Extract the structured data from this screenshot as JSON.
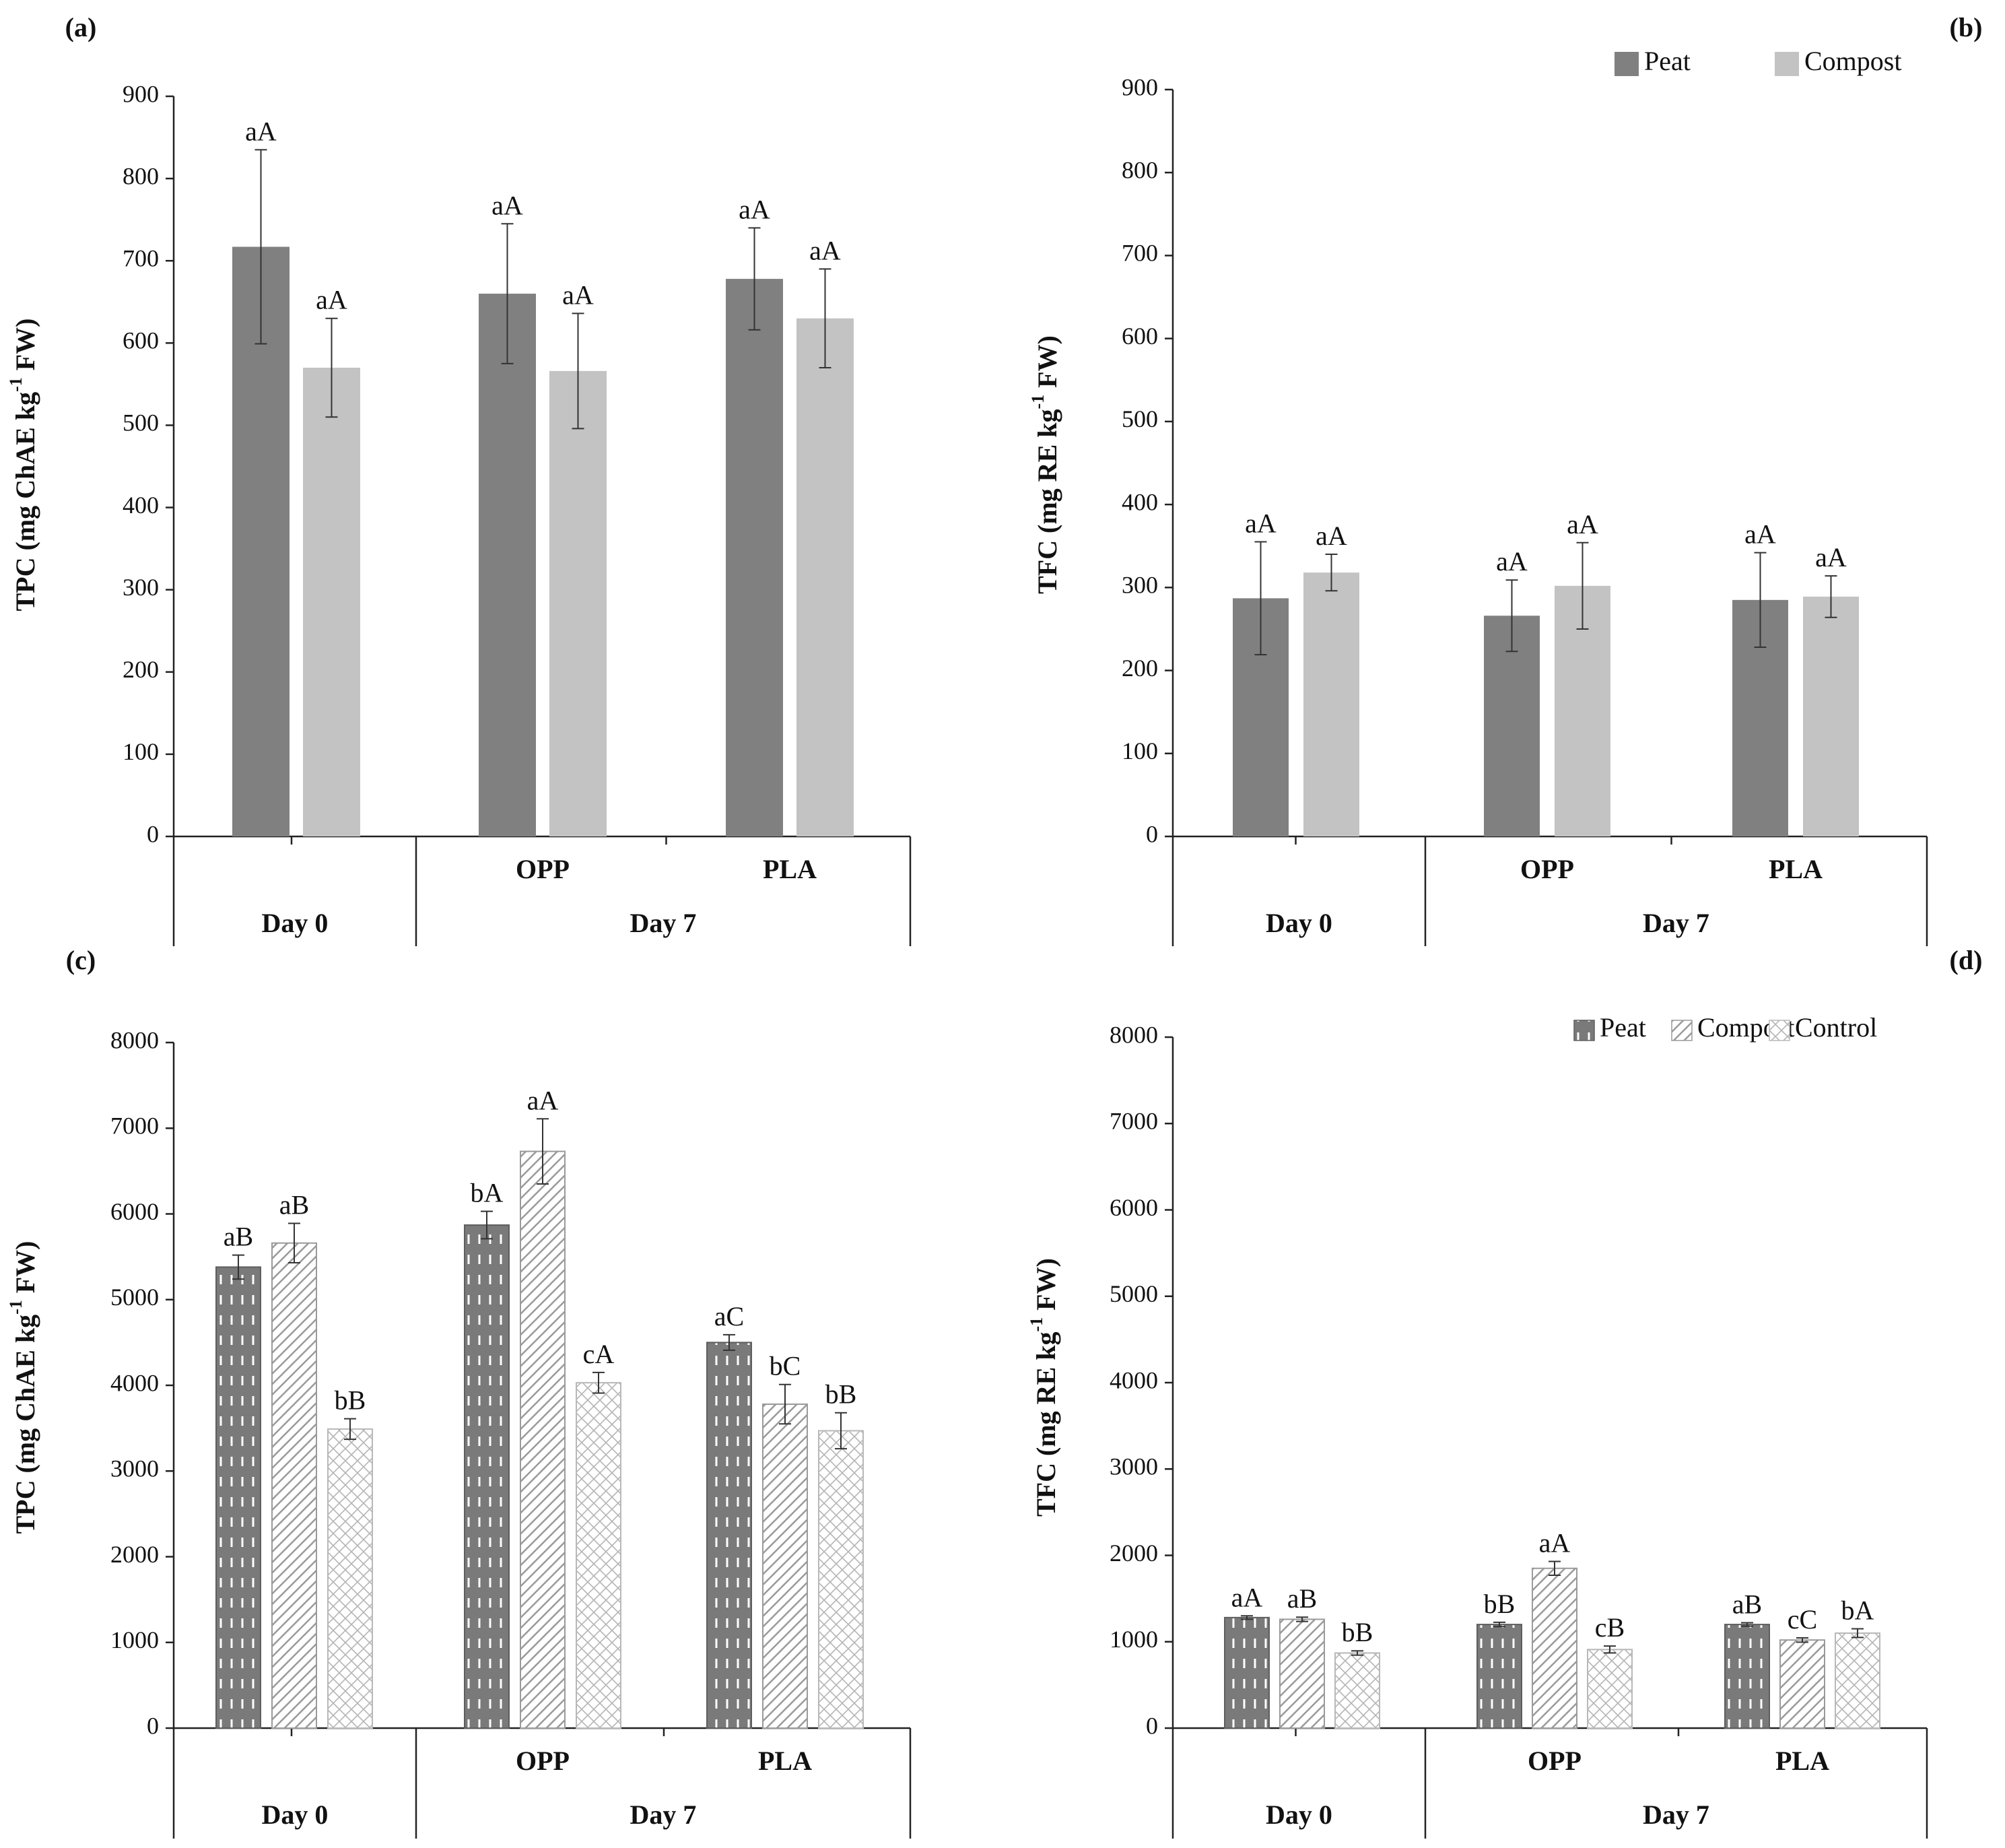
{
  "figure": {
    "colors": {
      "axis": "#222222",
      "peat": "#808080",
      "compost_solid": "#c3c3c3",
      "peat_pattern_bg": "#7a7a7a",
      "compost_hatch": "#9a9a9a",
      "control_cross": "#b5b5b5",
      "error_bar": "#333333"
    }
  },
  "chart_data": [
    {
      "panel": "a",
      "panel_label": "(a)",
      "type": "bar",
      "style": "solid",
      "ylabel_main": "TPC (mg ChAE kg",
      "ylabel_sup": "-1",
      "ylabel_tail": " FW)",
      "ylim": [
        0,
        900
      ],
      "yticks": [
        0,
        100,
        200,
        300,
        400,
        500,
        600,
        700,
        800,
        900
      ],
      "legend": null,
      "categories": [
        "",
        "OPP",
        "PLA"
      ],
      "groups": [
        "Day 0",
        "Day 7"
      ],
      "series": [
        {
          "name": "Peat",
          "values": [
            717,
            660,
            678
          ],
          "errors": [
            118,
            85,
            62
          ],
          "labels": [
            "aA",
            "aA",
            "aA"
          ]
        },
        {
          "name": "Compost",
          "values": [
            570,
            566,
            630
          ],
          "errors": [
            60,
            70,
            60
          ],
          "labels": [
            "aA",
            "aA",
            "aA"
          ]
        }
      ]
    },
    {
      "panel": "b",
      "panel_label": "(b)",
      "type": "bar",
      "style": "solid",
      "ylabel_main": "TFC (mg RE kg",
      "ylabel_sup": "-1",
      "ylabel_tail": " FW)",
      "ylim": [
        0,
        900
      ],
      "yticks": [
        0,
        100,
        200,
        300,
        400,
        500,
        600,
        700,
        800,
        900
      ],
      "legend": [
        "Peat",
        "Compost"
      ],
      "categories": [
        "",
        "OPP",
        "PLA"
      ],
      "groups": [
        "Day 0",
        "Day 7"
      ],
      "series": [
        {
          "name": "Peat",
          "values": [
            287,
            266,
            285
          ],
          "errors": [
            68,
            43,
            57
          ],
          "labels": [
            "aA",
            "aA",
            "aA"
          ]
        },
        {
          "name": "Compost",
          "values": [
            318,
            302,
            289
          ],
          "errors": [
            22,
            52,
            25
          ],
          "labels": [
            "aA",
            "aA",
            "aA"
          ]
        }
      ]
    },
    {
      "panel": "c",
      "panel_label": "(c)",
      "type": "bar",
      "style": "pattern",
      "ylabel_main": "TPC (mg ChAE kg",
      "ylabel_sup": "-1",
      "ylabel_tail": " FW)",
      "ylim": [
        0,
        8000
      ],
      "yticks": [
        0,
        1000,
        2000,
        3000,
        4000,
        5000,
        6000,
        7000,
        8000
      ],
      "legend": null,
      "categories": [
        "",
        "OPP",
        "PLA"
      ],
      "groups": [
        "Day 0",
        "Day 7"
      ],
      "series": [
        {
          "name": "Peat",
          "values": [
            5380,
            5870,
            4500
          ],
          "errors": [
            140,
            160,
            90
          ],
          "labels": [
            "aB",
            "bA",
            "aC"
          ]
        },
        {
          "name": "Compost",
          "values": [
            5660,
            6730,
            3780
          ],
          "errors": [
            230,
            380,
            230
          ],
          "labels": [
            "aB",
            "aA",
            "bC"
          ]
        },
        {
          "name": "Control",
          "values": [
            3490,
            4030,
            3470
          ],
          "errors": [
            120,
            120,
            210
          ],
          "labels": [
            "bB",
            "cA",
            "bB"
          ]
        }
      ]
    },
    {
      "panel": "d",
      "panel_label": "(d)",
      "type": "bar",
      "style": "pattern",
      "ylabel_main": "TFC (mg RE kg",
      "ylabel_sup": "-1",
      "ylabel_tail": " FW)",
      "ylim": [
        0,
        8000
      ],
      "yticks": [
        0,
        1000,
        2000,
        3000,
        4000,
        5000,
        6000,
        7000,
        8000
      ],
      "legend": [
        "Peat",
        "Compost",
        "Control"
      ],
      "categories": [
        "",
        "OPP",
        "PLA"
      ],
      "groups": [
        "Day 0",
        "Day 7"
      ],
      "series": [
        {
          "name": "Peat",
          "values": [
            1280,
            1200,
            1200
          ],
          "errors": [
            20,
            25,
            20
          ],
          "labels": [
            "aA",
            "bB",
            "aB"
          ]
        },
        {
          "name": "Compost",
          "values": [
            1260,
            1850,
            1020
          ],
          "errors": [
            25,
            80,
            25
          ],
          "labels": [
            "aB",
            "aA",
            "cC"
          ]
        },
        {
          "name": "Control",
          "values": [
            870,
            910,
            1100
          ],
          "errors": [
            25,
            40,
            50
          ],
          "labels": [
            "bB",
            "cB",
            "bA"
          ]
        }
      ]
    }
  ]
}
